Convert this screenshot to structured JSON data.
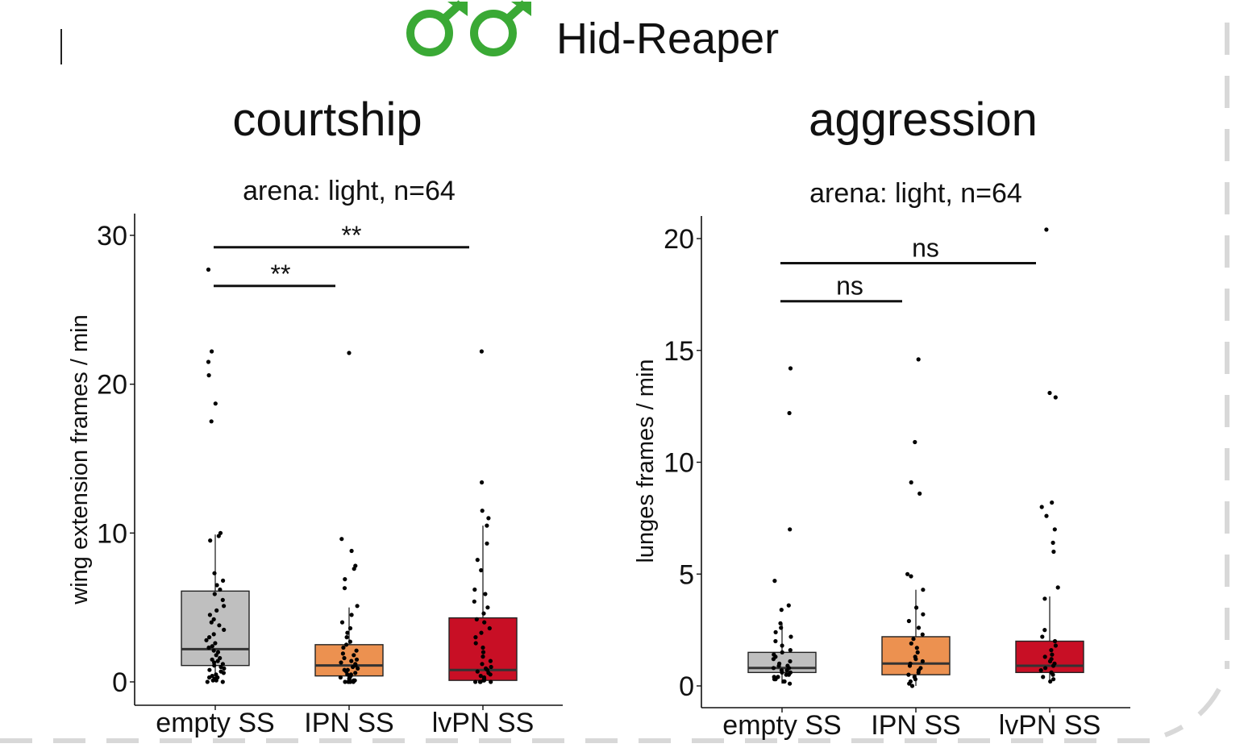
{
  "header": {
    "title": "Hid-Reaper",
    "symbol_icon": "male-male-symbol-icon",
    "symbol_color": "#3aa935"
  },
  "colors": {
    "empty SS": "#bfbfbf",
    "IPN SS": "#ec9150",
    "lvPN SS": "#c80f25"
  },
  "chart_data": [
    {
      "type": "box",
      "panel_title": "courtship",
      "subtitle": "arena: light, n=64",
      "ylabel": "wing extension frames / min",
      "ylim": [
        0,
        30
      ],
      "yticks": [
        0,
        10,
        20,
        30
      ],
      "categories": [
        "empty SS",
        "IPN SS",
        "lvPN SS"
      ],
      "boxes": [
        {
          "category": "empty SS",
          "q1": 1.1,
          "median": 2.2,
          "q3": 6.1,
          "whisker_low": 0,
          "whisker_high": 9.9,
          "points": [
            0,
            0,
            0.1,
            0.1,
            0.2,
            0.3,
            0.3,
            0.4,
            0.5,
            0.6,
            0.7,
            0.8,
            0.9,
            1.0,
            1.1,
            1.2,
            1.3,
            1.4,
            1.5,
            1.6,
            1.8,
            2.0,
            2.1,
            2.3,
            2.4,
            2.6,
            2.8,
            3.0,
            3.2,
            3.5,
            3.8,
            4.0,
            4.2,
            4.5,
            4.8,
            5.1,
            5.5,
            5.9,
            6.2,
            6.5,
            6.8,
            7.3,
            9.5,
            9.8,
            10.0,
            17.5,
            18.7,
            20.6,
            21.5,
            22.2,
            27.7
          ]
        },
        {
          "category": "IPN SS",
          "q1": 0.4,
          "median": 1.1,
          "q3": 2.5,
          "whisker_low": 0,
          "whisker_high": 5.0,
          "points": [
            0,
            0,
            0,
            0,
            0.1,
            0.1,
            0.2,
            0.2,
            0.3,
            0.3,
            0.4,
            0.5,
            0.5,
            0.6,
            0.7,
            0.8,
            0.8,
            0.9,
            1.0,
            1.1,
            1.2,
            1.3,
            1.4,
            1.5,
            1.6,
            1.8,
            1.9,
            2.1,
            2.3,
            2.5,
            2.7,
            3.0,
            3.3,
            3.6,
            4.0,
            4.5,
            5.1,
            6.3,
            6.9,
            7.6,
            7.8,
            8.8,
            9.6,
            22.1
          ]
        },
        {
          "category": "lvPN SS",
          "q1": 0.1,
          "median": 0.8,
          "q3": 4.3,
          "whisker_low": 0,
          "whisker_high": 10.5,
          "points": [
            0,
            0,
            0,
            0,
            0.1,
            0.1,
            0.2,
            0.2,
            0.3,
            0.4,
            0.5,
            0.6,
            0.7,
            0.8,
            0.9,
            1.0,
            1.2,
            1.4,
            1.7,
            2.0,
            2.3,
            2.6,
            3.0,
            3.3,
            3.6,
            4.0,
            4.2,
            4.6,
            5.0,
            5.4,
            5.9,
            6.2,
            7.5,
            8.2,
            9.3,
            10.5,
            11.0,
            11.5,
            13.4,
            22.2
          ]
        }
      ],
      "comparisons": [
        {
          "from": "empty SS",
          "to": "IPN SS",
          "y": 26.6,
          "label": "**"
        },
        {
          "from": "empty SS",
          "to": "lvPN SS",
          "y": 29.2,
          "label": "**"
        }
      ]
    },
    {
      "type": "box",
      "panel_title": "aggression",
      "subtitle": "arena: light, n=64",
      "ylabel": "lunges frames / min",
      "ylim": [
        0,
        20
      ],
      "yticks": [
        0,
        5,
        10,
        15,
        20
      ],
      "categories": [
        "empty SS",
        "IPN SS",
        "lvPN SS"
      ],
      "boxes": [
        {
          "category": "empty SS",
          "q1": 0.6,
          "median": 0.8,
          "q3": 1.5,
          "whisker_low": 0.1,
          "whisker_high": 2.8,
          "points": [
            0.1,
            0.2,
            0.2,
            0.3,
            0.3,
            0.4,
            0.4,
            0.5,
            0.5,
            0.6,
            0.6,
            0.7,
            0.7,
            0.8,
            0.8,
            0.9,
            0.9,
            1.0,
            1.1,
            1.2,
            1.3,
            1.4,
            1.5,
            1.6,
            1.8,
            2.0,
            2.2,
            2.4,
            2.6,
            2.8,
            3.4,
            3.6,
            4.7,
            7.0,
            12.2,
            14.2
          ]
        },
        {
          "category": "IPN SS",
          "q1": 0.5,
          "median": 1.0,
          "q3": 2.2,
          "whisker_low": 0,
          "whisker_high": 4.3,
          "points": [
            0,
            0.1,
            0.2,
            0.3,
            0.4,
            0.5,
            0.6,
            0.7,
            0.8,
            0.9,
            1.0,
            1.1,
            1.2,
            1.3,
            1.5,
            1.7,
            1.9,
            2.1,
            2.3,
            2.6,
            2.9,
            3.2,
            3.5,
            4.3,
            4.9,
            5.0,
            8.6,
            9.1,
            10.9,
            14.6
          ]
        },
        {
          "category": "lvPN SS",
          "q1": 0.6,
          "median": 0.9,
          "q3": 2.0,
          "whisker_low": 0.2,
          "whisker_high": 4.0,
          "points": [
            0.2,
            0.3,
            0.4,
            0.5,
            0.6,
            0.7,
            0.8,
            0.9,
            1.0,
            1.1,
            1.2,
            1.3,
            1.4,
            1.6,
            1.8,
            2.0,
            2.2,
            2.5,
            3.9,
            4.4,
            6.0,
            6.4,
            7.0,
            7.6,
            8.0,
            8.2,
            12.9,
            13.1,
            20.4
          ]
        }
      ],
      "comparisons": [
        {
          "from": "empty SS",
          "to": "IPN SS",
          "y": 17.2,
          "label": "ns"
        },
        {
          "from": "empty SS",
          "to": "lvPN SS",
          "y": 18.9,
          "label": "ns"
        }
      ]
    }
  ]
}
